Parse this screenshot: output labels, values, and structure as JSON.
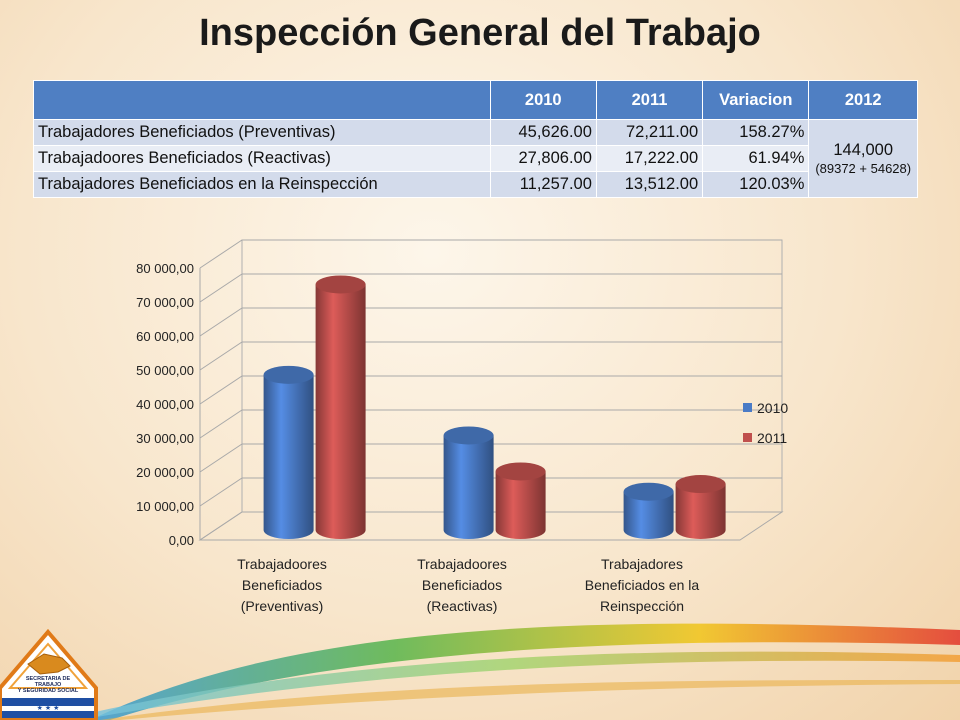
{
  "title": "Inspección General del Trabajo",
  "table": {
    "headers": [
      "",
      "2010",
      "2011",
      "Variacion",
      "2012"
    ],
    "rows": [
      {
        "label": "Trabajadores Beneficiados (Preventivas)",
        "v2010": "45,626.00",
        "v2011": "72,211.00",
        "variacion": "158.27%"
      },
      {
        "label": "Trabajadoores Beneficiados (Reactivas)",
        "v2010": "27,806.00",
        "v2011": "17,222.00",
        "variacion": "61.94%"
      },
      {
        "label": "Trabajadores Beneficiados en la Reinspección",
        "v2010": "11,257.00",
        "v2011": "13,512.00",
        "variacion": "120.03%"
      }
    ],
    "merged_2012_main": "144,000",
    "merged_2012_note": "(89372 + 54628)"
  },
  "logo": {
    "line1": "SECRETARIA DE",
    "line2": "TRABAJO",
    "line3": "Y SEGURIDAD SOCIAL"
  },
  "chart_data": {
    "type": "bar",
    "categories": [
      [
        "Trabajadoores",
        "Beneficiados",
        "(Preventivas)"
      ],
      [
        "Trabajadoores",
        "Beneficiados",
        "(Reactivas)"
      ],
      [
        "Trabajadores",
        "Beneficiados en la",
        "Reinspección"
      ]
    ],
    "series": [
      {
        "name": "2010",
        "values": [
          45626,
          27806,
          11257
        ],
        "color": "#4a7bc6"
      },
      {
        "name": "2011",
        "values": [
          72211,
          17222,
          13512
        ],
        "color": "#c0504d"
      }
    ],
    "ylim": [
      0,
      80000
    ],
    "yticks": [
      "0,00",
      "10 000,00",
      "20 000,00",
      "30 000,00",
      "40 000,00",
      "50 000,00",
      "60 000,00",
      "70 000,00",
      "80 000,00"
    ],
    "legend_position": "right",
    "grid": true
  }
}
